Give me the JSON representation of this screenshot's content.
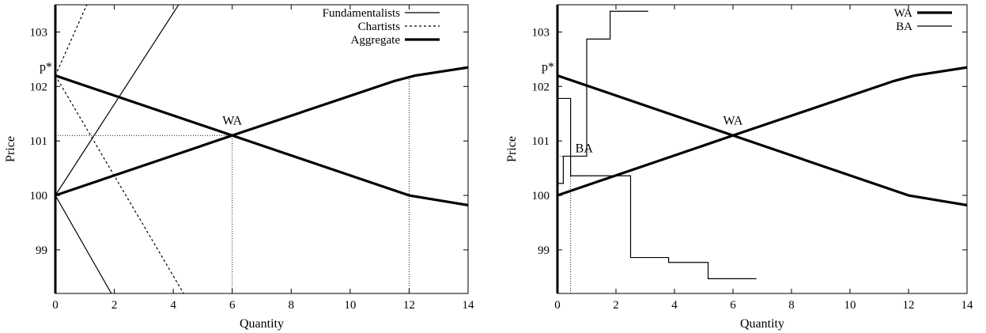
{
  "chart_data": [
    {
      "type": "line",
      "xlabel": "Quantity",
      "ylabel": "Price",
      "xlim": [
        0,
        14
      ],
      "ylim": [
        98.2,
        103.5
      ],
      "x_ticks": [
        0,
        2,
        4,
        6,
        8,
        10,
        12,
        14
      ],
      "y_ticks": [
        99,
        100,
        101,
        102,
        103
      ],
      "legend_position": "top-right",
      "series": [
        {
          "name": "Fundamentalists",
          "style": "thin",
          "x": [
            0,
            1.9
          ],
          "y": [
            100,
            98.2
          ]
        },
        {
          "name": "Fundamentalists",
          "style": "thin",
          "x": [
            0,
            4.3
          ],
          "y": [
            100,
            103.6
          ]
        },
        {
          "name": "Chartists",
          "style": "dashed",
          "x": [
            0,
            1.15
          ],
          "y": [
            102.2,
            103.6
          ]
        },
        {
          "name": "Chartists",
          "style": "dashed",
          "x": [
            0,
            4.35
          ],
          "y": [
            102.2,
            98.2
          ]
        },
        {
          "name": "Aggregate",
          "style": "thick",
          "x": [
            0,
            6,
            12,
            14
          ],
          "y": [
            102.2,
            101.1,
            100,
            99.82
          ]
        },
        {
          "name": "Aggregate",
          "style": "thick",
          "x": [
            0,
            6,
            11.5,
            12.2,
            14
          ],
          "y": [
            100,
            101.1,
            102.1,
            102.2,
            102.35
          ]
        }
      ],
      "reference_lines": [
        {
          "x": [
            0,
            6
          ],
          "y": [
            101.1,
            101.1
          ]
        },
        {
          "x": [
            6,
            6
          ],
          "y": [
            98.2,
            101.1
          ]
        },
        {
          "x": [
            12,
            12
          ],
          "y": [
            98.2,
            102.2
          ]
        }
      ],
      "annotations": [
        {
          "text": "WA",
          "x": 6,
          "y": 101.1
        },
        {
          "text": "p*",
          "x": 0,
          "y": 102.2
        }
      ]
    },
    {
      "type": "line",
      "xlabel": "Quantity",
      "ylabel": "Price",
      "xlim": [
        0,
        14
      ],
      "ylim": [
        98.2,
        103.5
      ],
      "x_ticks": [
        0,
        2,
        4,
        6,
        8,
        10,
        12,
        14
      ],
      "y_ticks": [
        99,
        100,
        101,
        102,
        103
      ],
      "legend_position": "top-right",
      "series": [
        {
          "name": "WA",
          "style": "thick",
          "x": [
            0,
            6,
            12,
            14
          ],
          "y": [
            102.2,
            101.1,
            100,
            99.82
          ]
        },
        {
          "name": "WA",
          "style": "thick",
          "x": [
            0,
            6,
            11.5,
            12.2,
            14
          ],
          "y": [
            100,
            101.1,
            102.1,
            102.2,
            102.35
          ]
        },
        {
          "name": "BA",
          "style": "thin",
          "x": [
            0,
            0,
            0.2,
            0.2,
            0.5,
            0.5,
            1.0,
            1.0,
            1.8,
            1.8,
            3.1
          ],
          "y": [
            100,
            100.22,
            100.22,
            100.72,
            100.72,
            100.72,
            100.72,
            102.87,
            102.87,
            103.38,
            103.38
          ]
        },
        {
          "name": "BA",
          "style": "thin",
          "x": [
            0,
            0,
            0.45,
            0.45,
            2.5,
            2.5,
            3.8,
            3.8,
            5.15,
            5.15,
            6.8
          ],
          "y": [
            102.2,
            101.78,
            101.78,
            100.36,
            100.36,
            98.86,
            98.86,
            98.77,
            98.77,
            98.47,
            98.47
          ]
        }
      ],
      "reference_lines": [
        {
          "x": [
            0,
            0.45
          ],
          "y": [
            100.72,
            100.72
          ]
        },
        {
          "x": [
            0.45,
            0.45
          ],
          "y": [
            98.2,
            100.72
          ]
        }
      ],
      "annotations": [
        {
          "text": "WA",
          "x": 6,
          "y": 101.1
        },
        {
          "text": "BA",
          "x": 0.45,
          "y": 100.72
        },
        {
          "text": "p*",
          "x": 0,
          "y": 102.2
        }
      ]
    }
  ]
}
